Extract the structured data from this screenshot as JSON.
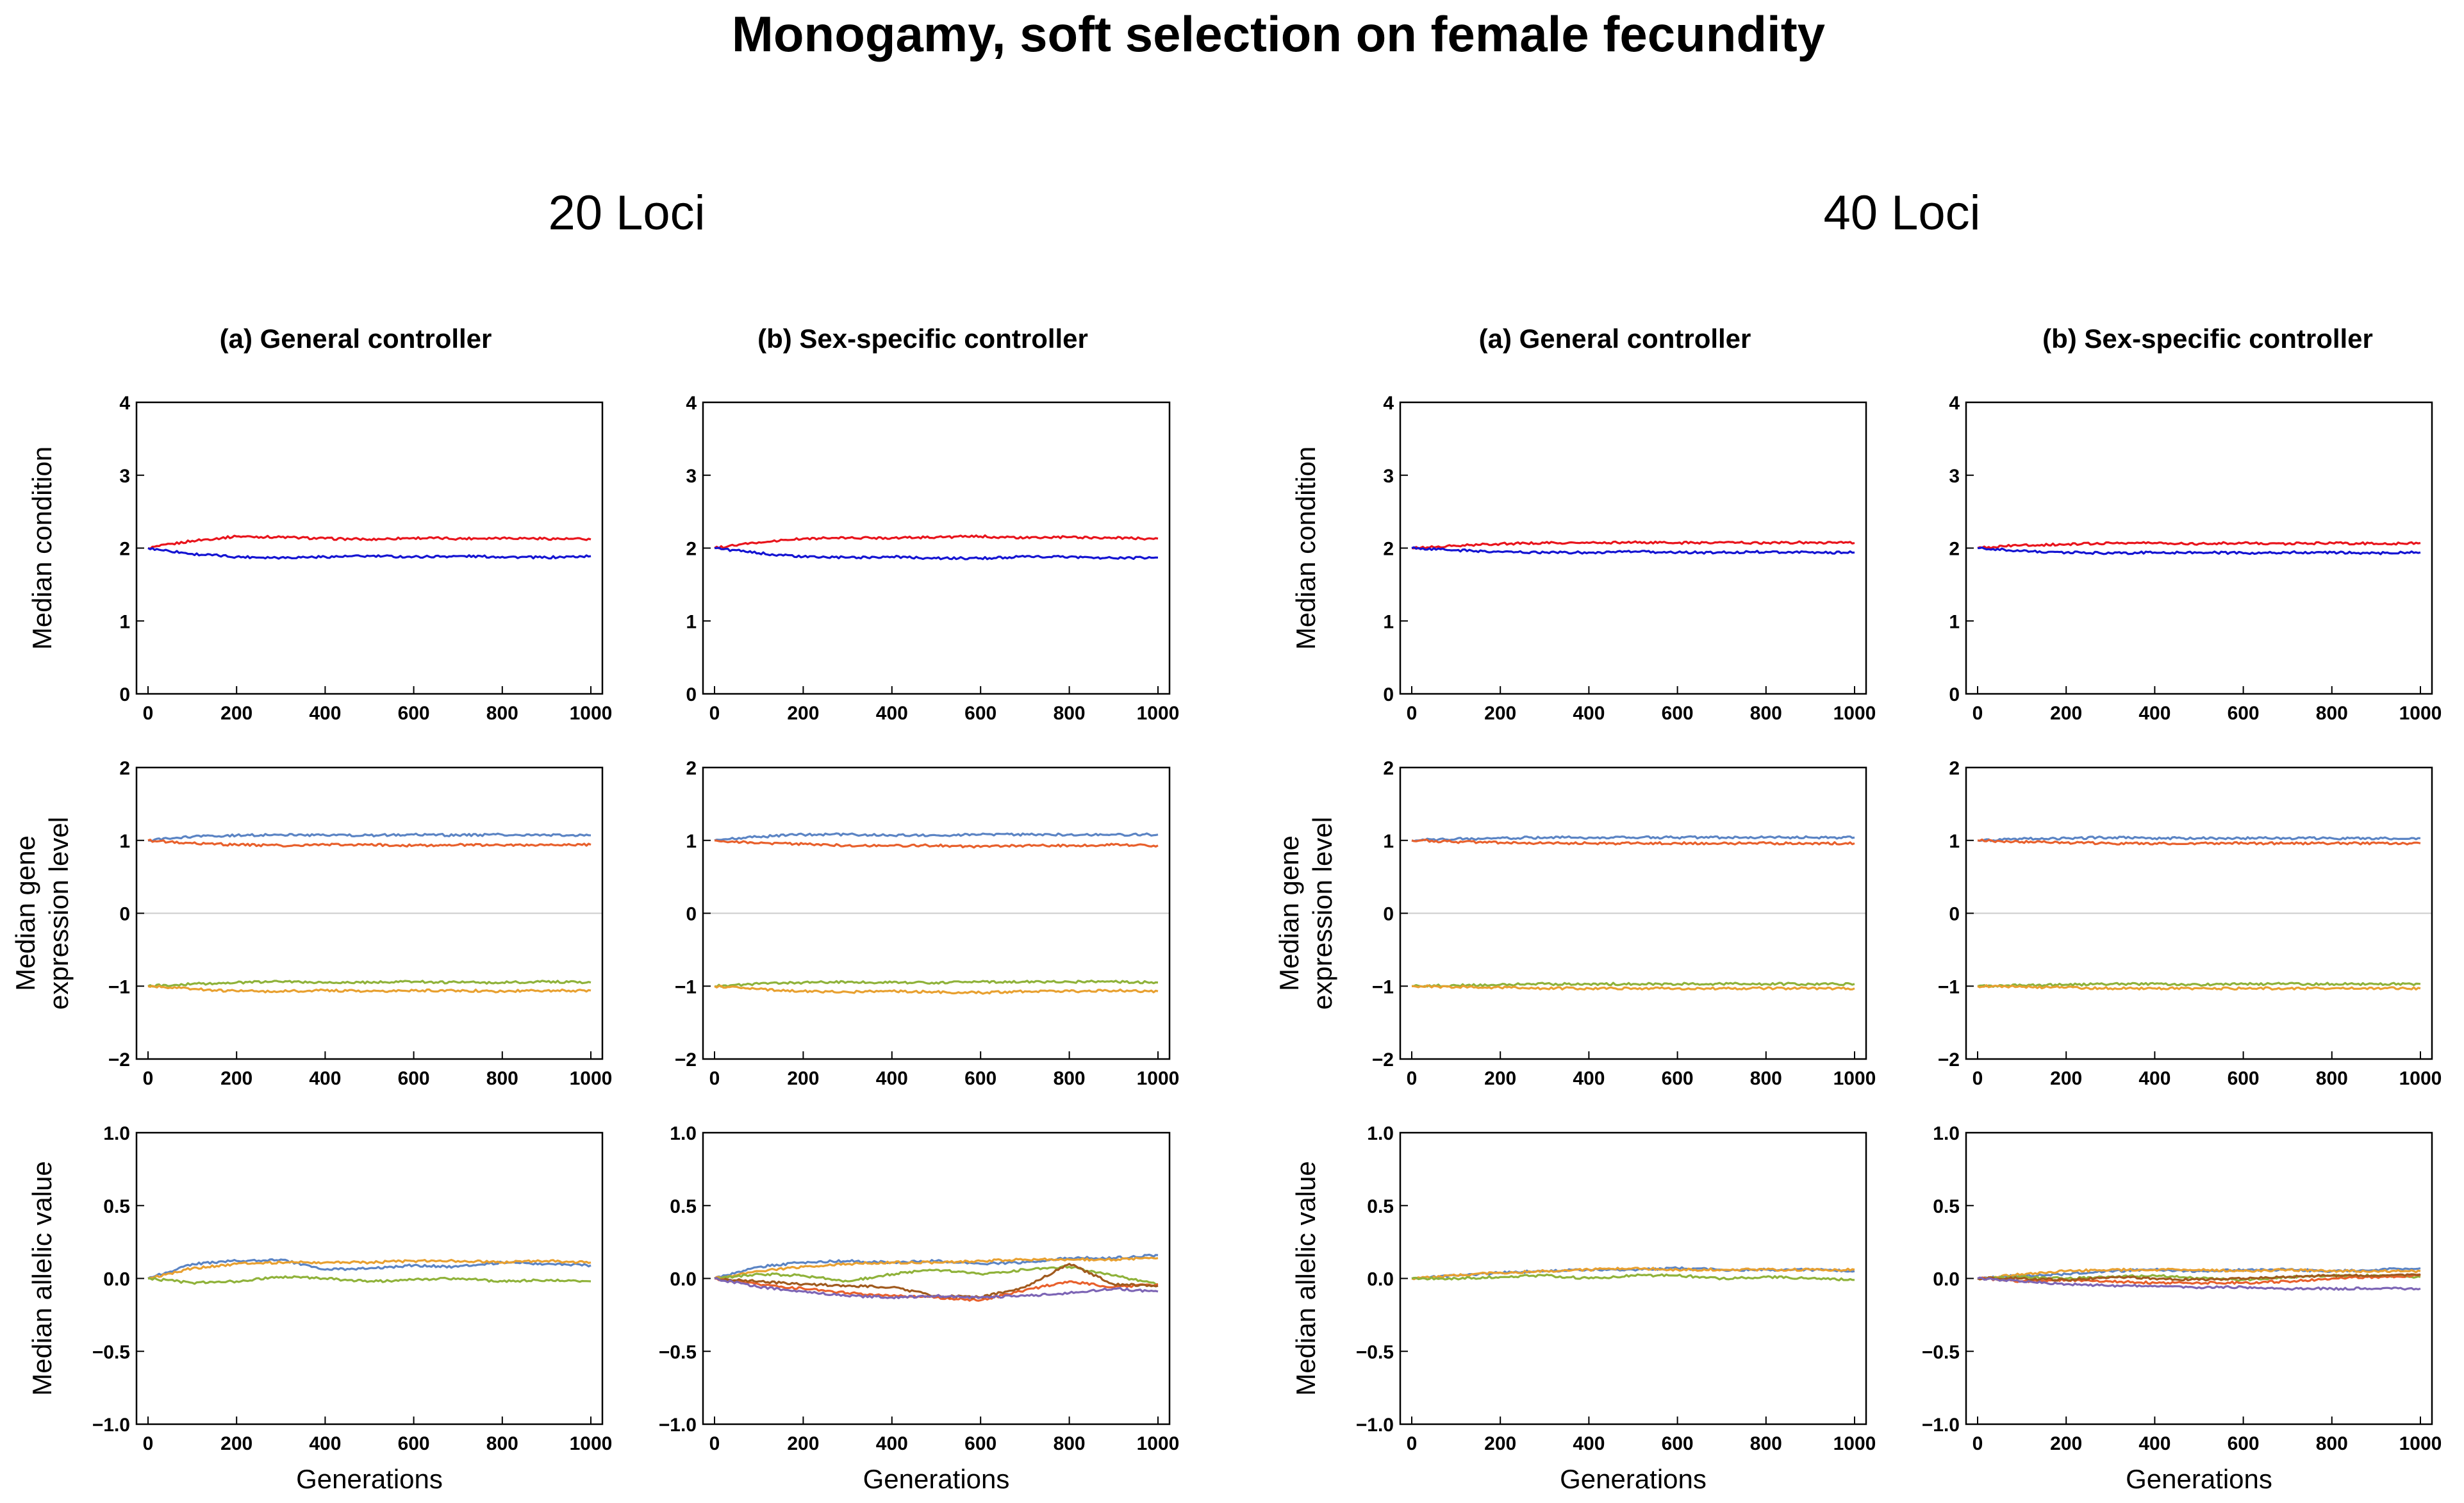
{
  "figure": {
    "title": "Monogamy, soft selection on female fecundity",
    "groups": [
      "20 Loci",
      "40 Loci"
    ],
    "columns": [
      "(a) General controller",
      "(b) Sex-specific controller",
      "(a) General controller",
      "(b) Sex-specific controller"
    ],
    "xlabel": "Generations",
    "ylabels": [
      "Median condition",
      [
        "Median gene",
        "expression level"
      ],
      "Median allelic value"
    ]
  },
  "chart_data": [
    {
      "type": "line",
      "group": "20 Loci",
      "column": "(a) General controller",
      "ylabel": "Median condition",
      "xlim": [
        0,
        1000
      ],
      "ylim": [
        0,
        4
      ],
      "x": [
        0,
        100,
        200,
        300,
        400,
        500,
        600,
        700,
        800,
        900,
        1000
      ],
      "series": [
        {
          "color": "#e8141c",
          "values": [
            2.0,
            2.1,
            2.16,
            2.15,
            2.13,
            2.12,
            2.14,
            2.13,
            2.14,
            2.13,
            2.12
          ]
        },
        {
          "color": "#1414d2",
          "values": [
            2.0,
            1.92,
            1.88,
            1.87,
            1.88,
            1.89,
            1.88,
            1.89,
            1.88,
            1.87,
            1.89
          ]
        }
      ]
    },
    {
      "type": "line",
      "group": "20 Loci",
      "column": "(b) Sex-specific controller",
      "ylabel": "Median condition",
      "xlim": [
        0,
        1000
      ],
      "ylim": [
        0,
        4
      ],
      "x": [
        0,
        100,
        200,
        300,
        400,
        500,
        600,
        700,
        800,
        900,
        1000
      ],
      "series": [
        {
          "color": "#e8141c",
          "values": [
            2.0,
            2.08,
            2.13,
            2.14,
            2.14,
            2.15,
            2.16,
            2.14,
            2.15,
            2.14,
            2.13
          ]
        },
        {
          "color": "#1414d2",
          "values": [
            2.0,
            1.93,
            1.88,
            1.87,
            1.88,
            1.86,
            1.86,
            1.88,
            1.88,
            1.86,
            1.87
          ]
        }
      ]
    },
    {
      "type": "line",
      "group": "40 Loci",
      "column": "(a) General controller",
      "ylabel": "Median condition",
      "xlim": [
        0,
        1000
      ],
      "ylim": [
        0,
        4
      ],
      "x": [
        0,
        100,
        200,
        300,
        400,
        500,
        600,
        700,
        800,
        900,
        1000
      ],
      "series": [
        {
          "color": "#e8141c",
          "values": [
            2.0,
            2.03,
            2.06,
            2.07,
            2.07,
            2.08,
            2.07,
            2.08,
            2.07,
            2.08,
            2.07
          ]
        },
        {
          "color": "#1414d2",
          "values": [
            2.0,
            1.97,
            1.95,
            1.94,
            1.94,
            1.95,
            1.94,
            1.94,
            1.95,
            1.94,
            1.94
          ]
        }
      ]
    },
    {
      "type": "line",
      "group": "40 Loci",
      "column": "(b) Sex-specific controller",
      "ylabel": "Median condition",
      "xlim": [
        0,
        1000
      ],
      "ylim": [
        0,
        4
      ],
      "x": [
        0,
        100,
        200,
        300,
        400,
        500,
        600,
        700,
        800,
        900,
        1000
      ],
      "series": [
        {
          "color": "#e8141c",
          "values": [
            2.0,
            2.04,
            2.05,
            2.07,
            2.07,
            2.06,
            2.07,
            2.06,
            2.07,
            2.06,
            2.07
          ]
        },
        {
          "color": "#1414d2",
          "values": [
            2.0,
            1.96,
            1.94,
            1.93,
            1.94,
            1.94,
            1.93,
            1.94,
            1.94,
            1.93,
            1.94
          ]
        }
      ]
    },
    {
      "type": "line",
      "group": "20 Loci",
      "column": "(a) General controller",
      "ylabel": "Median gene expression level",
      "xlim": [
        0,
        1000
      ],
      "ylim": [
        -2,
        2
      ],
      "x": [
        0,
        100,
        200,
        300,
        400,
        500,
        600,
        700,
        800,
        900,
        1000
      ],
      "series": [
        {
          "color": "#5b84c4",
          "values": [
            1.0,
            1.05,
            1.07,
            1.08,
            1.07,
            1.07,
            1.08,
            1.07,
            1.08,
            1.07,
            1.07
          ]
        },
        {
          "color": "#e8602c",
          "values": [
            1.0,
            0.96,
            0.94,
            0.93,
            0.94,
            0.94,
            0.93,
            0.94,
            0.93,
            0.94,
            0.94
          ]
        },
        {
          "color": "#8fb23a",
          "values": [
            -1.0,
            -0.97,
            -0.95,
            -0.94,
            -0.95,
            -0.95,
            -0.94,
            -0.95,
            -0.95,
            -0.94,
            -0.95
          ]
        },
        {
          "color": "#e8a030",
          "values": [
            -1.0,
            -1.04,
            -1.07,
            -1.07,
            -1.06,
            -1.07,
            -1.06,
            -1.06,
            -1.07,
            -1.06,
            -1.06
          ]
        }
      ]
    },
    {
      "type": "line",
      "group": "20 Loci",
      "column": "(b) Sex-specific controller",
      "ylabel": "Median gene expression level",
      "xlim": [
        0,
        1000
      ],
      "ylim": [
        -2,
        2
      ],
      "x": [
        0,
        100,
        200,
        300,
        400,
        500,
        600,
        700,
        800,
        900,
        1000
      ],
      "series": [
        {
          "color": "#5b84c4",
          "values": [
            1.0,
            1.05,
            1.08,
            1.08,
            1.07,
            1.07,
            1.08,
            1.08,
            1.08,
            1.08,
            1.08
          ]
        },
        {
          "color": "#e8602c",
          "values": [
            1.0,
            0.96,
            0.95,
            0.93,
            0.93,
            0.93,
            0.91,
            0.93,
            0.93,
            0.94,
            0.93
          ]
        },
        {
          "color": "#8fb23a",
          "values": [
            -1.0,
            -0.97,
            -0.95,
            -0.94,
            -0.95,
            -0.95,
            -0.94,
            -0.94,
            -0.94,
            -0.94,
            -0.95
          ]
        },
        {
          "color": "#e8a030",
          "values": [
            -1.0,
            -1.04,
            -1.07,
            -1.08,
            -1.07,
            -1.08,
            -1.09,
            -1.07,
            -1.07,
            -1.06,
            -1.07
          ]
        }
      ]
    },
    {
      "type": "line",
      "group": "40 Loci",
      "column": "(a) General controller",
      "ylabel": "Median gene expression level",
      "xlim": [
        0,
        1000
      ],
      "ylim": [
        -2,
        2
      ],
      "x": [
        0,
        100,
        200,
        300,
        400,
        500,
        600,
        700,
        800,
        900,
        1000
      ],
      "series": [
        {
          "color": "#5b84c4",
          "values": [
            1.0,
            1.02,
            1.03,
            1.04,
            1.04,
            1.04,
            1.04,
            1.04,
            1.04,
            1.04,
            1.04
          ]
        },
        {
          "color": "#e8602c",
          "values": [
            1.0,
            0.98,
            0.97,
            0.96,
            0.96,
            0.96,
            0.96,
            0.96,
            0.96,
            0.96,
            0.96
          ]
        },
        {
          "color": "#8fb23a",
          "values": [
            -1.0,
            -0.99,
            -0.98,
            -0.97,
            -0.97,
            -0.97,
            -0.97,
            -0.97,
            -0.97,
            -0.97,
            -0.97
          ]
        },
        {
          "color": "#e8a030",
          "values": [
            -1.0,
            -1.01,
            -1.02,
            -1.03,
            -1.03,
            -1.03,
            -1.03,
            -1.03,
            -1.03,
            -1.03,
            -1.03
          ]
        }
      ]
    },
    {
      "type": "line",
      "group": "40 Loci",
      "column": "(b) Sex-specific controller",
      "ylabel": "Median gene expression level",
      "xlim": [
        0,
        1000
      ],
      "ylim": [
        -2,
        2
      ],
      "x": [
        0,
        100,
        200,
        300,
        400,
        500,
        600,
        700,
        800,
        900,
        1000
      ],
      "series": [
        {
          "color": "#5b84c4",
          "values": [
            1.0,
            1.02,
            1.03,
            1.04,
            1.03,
            1.03,
            1.03,
            1.03,
            1.03,
            1.03,
            1.03
          ]
        },
        {
          "color": "#e8602c",
          "values": [
            1.0,
            0.98,
            0.97,
            0.96,
            0.96,
            0.96,
            0.96,
            0.96,
            0.96,
            0.96,
            0.96
          ]
        },
        {
          "color": "#8fb23a",
          "values": [
            -1.0,
            -0.99,
            -0.98,
            -0.97,
            -0.97,
            -0.98,
            -0.97,
            -0.97,
            -0.97,
            -0.97,
            -0.97
          ]
        },
        {
          "color": "#e8a030",
          "values": [
            -1.0,
            -1.01,
            -1.02,
            -1.03,
            -1.03,
            -1.03,
            -1.03,
            -1.03,
            -1.03,
            -1.03,
            -1.03
          ]
        }
      ]
    },
    {
      "type": "line",
      "group": "20 Loci",
      "column": "(a) General controller",
      "ylabel": "Median allelic value",
      "xlim": [
        0,
        1000
      ],
      "ylim": [
        -1,
        1
      ],
      "x": [
        0,
        100,
        200,
        300,
        400,
        500,
        600,
        700,
        800,
        900,
        1000
      ],
      "series": [
        {
          "color": "#5b84c4",
          "values": [
            0.0,
            0.1,
            0.12,
            0.13,
            0.06,
            0.07,
            0.09,
            0.08,
            0.11,
            0.1,
            0.09
          ]
        },
        {
          "color": "#e8a030",
          "values": [
            0.0,
            0.07,
            0.1,
            0.11,
            0.11,
            0.11,
            0.12,
            0.12,
            0.11,
            0.12,
            0.11
          ]
        },
        {
          "color": "#8fb23a",
          "values": [
            0.0,
            -0.03,
            -0.02,
            0.01,
            0.0,
            -0.02,
            -0.01,
            0.0,
            -0.02,
            -0.01,
            -0.02
          ]
        }
      ]
    },
    {
      "type": "line",
      "group": "20 Loci",
      "column": "(b) Sex-specific controller",
      "ylabel": "Median allelic value",
      "xlim": [
        0,
        1000
      ],
      "ylim": [
        -1,
        1
      ],
      "x": [
        0,
        100,
        200,
        300,
        400,
        500,
        600,
        700,
        800,
        900,
        1000
      ],
      "series": [
        {
          "color": "#5b84c4",
          "values": [
            0.0,
            0.08,
            0.11,
            0.12,
            0.11,
            0.12,
            0.1,
            0.11,
            0.14,
            0.14,
            0.16
          ]
        },
        {
          "color": "#e8a030",
          "values": [
            0.0,
            0.05,
            0.08,
            0.1,
            0.11,
            0.11,
            0.12,
            0.13,
            0.13,
            0.13,
            0.14
          ]
        },
        {
          "color": "#8fb23a",
          "values": [
            0.0,
            0.03,
            0.02,
            -0.02,
            0.03,
            0.06,
            0.03,
            0.06,
            0.08,
            0.02,
            -0.04
          ]
        },
        {
          "color": "#e8602c",
          "values": [
            0.0,
            -0.04,
            -0.07,
            -0.1,
            -0.12,
            -0.13,
            -0.15,
            -0.08,
            -0.02,
            -0.06,
            -0.04
          ]
        },
        {
          "color": "#a05a1e",
          "values": [
            0.0,
            -0.02,
            -0.04,
            -0.05,
            -0.06,
            -0.12,
            -0.13,
            -0.06,
            0.1,
            -0.04,
            -0.05
          ]
        },
        {
          "color": "#7d65b5",
          "values": [
            0.0,
            -0.06,
            -0.09,
            -0.12,
            -0.13,
            -0.12,
            -0.13,
            -0.12,
            -0.1,
            -0.07,
            -0.09
          ]
        }
      ]
    },
    {
      "type": "line",
      "group": "40 Loci",
      "column": "(a) General controller",
      "ylabel": "Median allelic value",
      "xlim": [
        0,
        1000
      ],
      "ylim": [
        -1,
        1
      ],
      "x": [
        0,
        100,
        200,
        300,
        400,
        500,
        600,
        700,
        800,
        900,
        1000
      ],
      "series": [
        {
          "color": "#5b84c4",
          "values": [
            0.0,
            0.02,
            0.04,
            0.05,
            0.06,
            0.06,
            0.07,
            0.06,
            0.06,
            0.06,
            0.05
          ]
        },
        {
          "color": "#e8a030",
          "values": [
            0.0,
            0.02,
            0.04,
            0.05,
            0.06,
            0.07,
            0.06,
            0.06,
            0.06,
            0.06,
            0.06
          ]
        },
        {
          "color": "#8fb23a",
          "values": [
            0.0,
            0.0,
            0.01,
            0.02,
            0.0,
            0.02,
            0.02,
            0.0,
            0.01,
            0.0,
            -0.01
          ]
        }
      ]
    },
    {
      "type": "line",
      "group": "40 Loci",
      "column": "(b) Sex-specific controller",
      "ylabel": "Median allelic value",
      "xlim": [
        0,
        1000
      ],
      "ylim": [
        -1,
        1
      ],
      "x": [
        0,
        100,
        200,
        300,
        400,
        500,
        600,
        700,
        800,
        900,
        1000
      ],
      "series": [
        {
          "color": "#5b84c4",
          "values": [
            0.0,
            0.02,
            0.03,
            0.05,
            0.06,
            0.05,
            0.06,
            0.06,
            0.05,
            0.06,
            0.07
          ]
        },
        {
          "color": "#e8a030",
          "values": [
            0.0,
            0.03,
            0.05,
            0.06,
            0.06,
            0.06,
            0.05,
            0.06,
            0.05,
            0.05,
            0.05
          ]
        },
        {
          "color": "#8fb23a",
          "values": [
            0.0,
            0.01,
            0.0,
            0.01,
            0.02,
            0.0,
            -0.01,
            0.01,
            0.02,
            0.02,
            0.01
          ]
        },
        {
          "color": "#e8602c",
          "values": [
            0.0,
            -0.02,
            -0.01,
            -0.02,
            -0.03,
            -0.03,
            -0.03,
            -0.02,
            0.0,
            0.01,
            0.02
          ]
        },
        {
          "color": "#a05a1e",
          "values": [
            0.0,
            0.0,
            -0.01,
            0.01,
            0.0,
            -0.01,
            0.0,
            0.01,
            0.02,
            0.02,
            0.03
          ]
        },
        {
          "color": "#7d65b5",
          "values": [
            0.0,
            -0.02,
            -0.04,
            -0.05,
            -0.05,
            -0.06,
            -0.06,
            -0.07,
            -0.07,
            -0.07,
            -0.07
          ]
        }
      ]
    }
  ]
}
